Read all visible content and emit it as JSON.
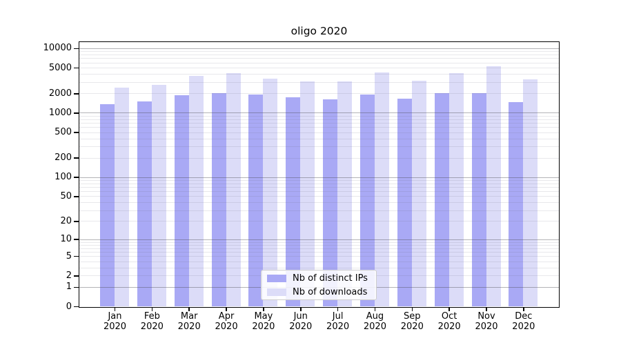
{
  "title": "oligo 2020",
  "chart_data": {
    "type": "bar",
    "title": "oligo 2020",
    "categories": [
      "Jan 2020",
      "Feb 2020",
      "Mar 2020",
      "Apr 2020",
      "May 2020",
      "Jun 2020",
      "Jul 2020",
      "Aug 2020",
      "Sep 2020",
      "Oct 2020",
      "Nov 2020",
      "Dec 2020"
    ],
    "series": [
      {
        "name": "Nb of distinct IPs",
        "color": "#a9a9f5",
        "values": [
          1370,
          1500,
          1880,
          2040,
          1910,
          1740,
          1600,
          1940,
          1670,
          2000,
          2000,
          1460
        ]
      },
      {
        "name": "Nb of downloads",
        "color": "#dcdcf8",
        "values": [
          2440,
          2680,
          3720,
          4140,
          3360,
          3030,
          3100,
          4200,
          3180,
          4140,
          5330,
          3280
        ]
      }
    ],
    "yscale": "log1p",
    "y_ticks": [
      0,
      1,
      2,
      5,
      10,
      20,
      50,
      100,
      200,
      500,
      1000,
      2000,
      5000,
      10000
    ],
    "y_tick_labels": [
      "0",
      "1",
      "2",
      "5",
      "10",
      "20",
      "50",
      "100",
      "200",
      "500",
      "1000",
      "2000",
      "5000",
      "10000"
    ],
    "ylim": [
      0,
      12500
    ],
    "xlabel": "",
    "ylabel": "",
    "grid": "on",
    "legend_position": "lower center"
  },
  "legend": {
    "items": [
      {
        "label": "Nb of distinct IPs",
        "color": "#a9a9f5"
      },
      {
        "label": "Nb of downloads",
        "color": "#dcdcf8"
      }
    ]
  }
}
